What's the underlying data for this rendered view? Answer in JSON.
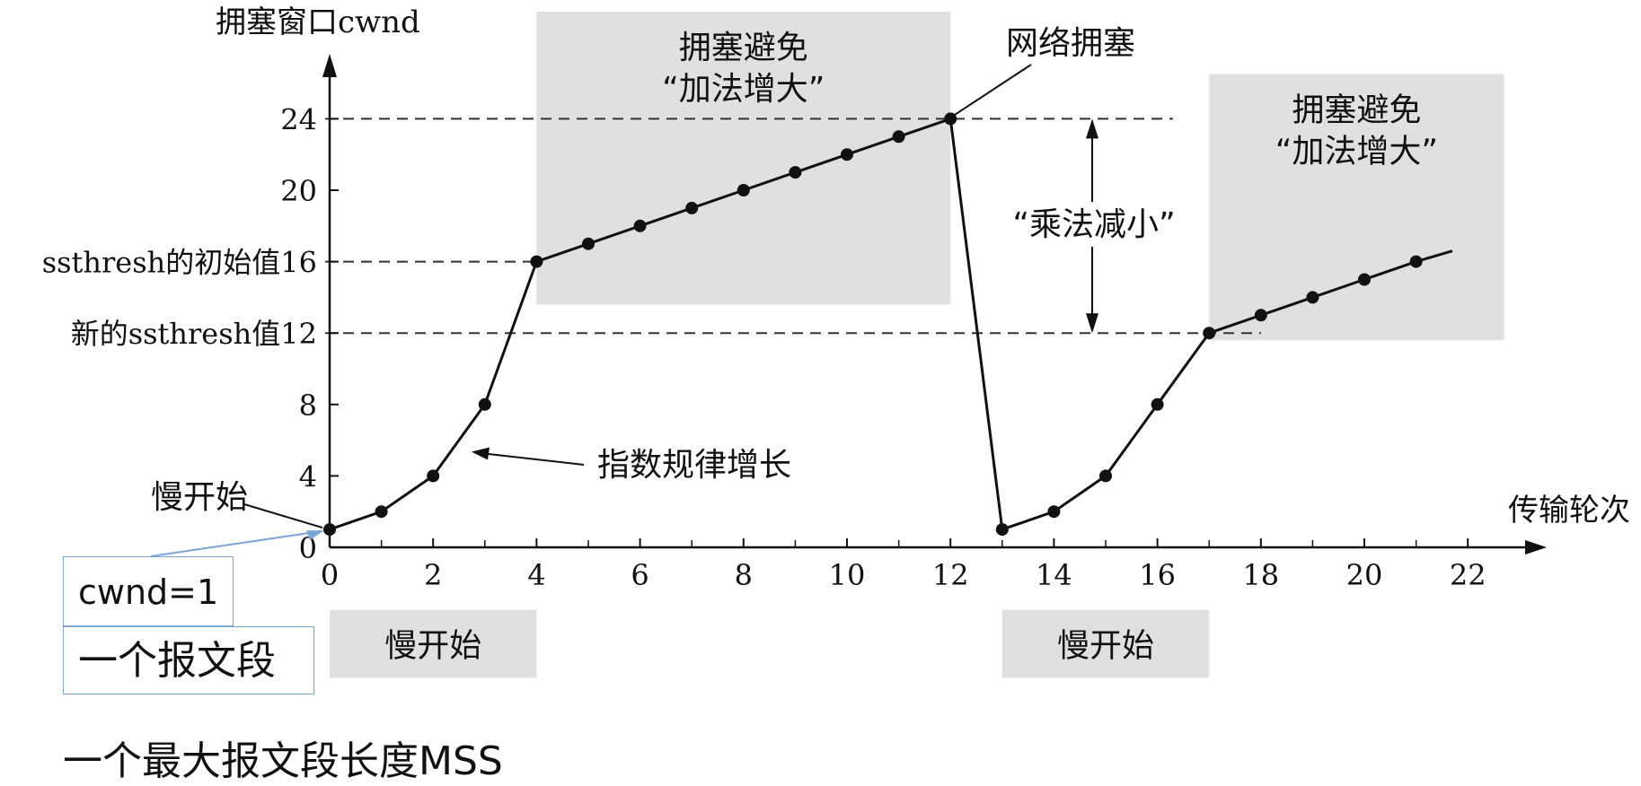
{
  "chart_data": {
    "type": "line",
    "title": "",
    "ylabel": "拥塞窗口cwnd",
    "xlabel": "传输轮次",
    "xlim": [
      0,
      23
    ],
    "ylim": [
      0,
      26
    ],
    "x_ticks": [
      0,
      2,
      4,
      6,
      8,
      10,
      12,
      14,
      16,
      18,
      20,
      22
    ],
    "y_ticks": [
      0,
      4,
      8,
      12,
      16,
      20,
      24
    ],
    "y_special_labels": [
      {
        "y": 16,
        "text": "ssthresh的初始值16"
      },
      {
        "y": 12,
        "text": "新的ssthresh值12"
      }
    ],
    "series": [
      {
        "points": [
          [
            0,
            1
          ],
          [
            1,
            2
          ],
          [
            2,
            4
          ],
          [
            3,
            8
          ],
          [
            4,
            16
          ],
          [
            5,
            17
          ],
          [
            6,
            18
          ],
          [
            7,
            19
          ],
          [
            8,
            20
          ],
          [
            9,
            21
          ],
          [
            10,
            22
          ],
          [
            11,
            23
          ],
          [
            12,
            24
          ]
        ]
      },
      {
        "points": [
          [
            13,
            1
          ],
          [
            14,
            2
          ],
          [
            15,
            4
          ],
          [
            16,
            8
          ],
          [
            17,
            12
          ],
          [
            18,
            13
          ],
          [
            19,
            14
          ],
          [
            20,
            15
          ],
          [
            21,
            16
          ]
        ],
        "extend_to": [
          21.7,
          16.6
        ]
      }
    ],
    "dashed_lines": [
      {
        "y": 24,
        "x_from": 0,
        "x_to": 16.3
      },
      {
        "y": 16,
        "x_from": 0,
        "x_to": 4
      },
      {
        "y": 12,
        "x_from": 0,
        "x_to": 18
      }
    ],
    "shaded_regions": [
      {
        "x": [
          4,
          12
        ],
        "y": [
          13.6,
          30
        ],
        "label_lines": [
          "拥塞避免",
          "“加法增大”"
        ]
      },
      {
        "x": [
          17,
          22.7
        ],
        "y": [
          11.6,
          26.5
        ],
        "label_lines": [
          "拥塞避免",
          "“加法增大”"
        ]
      },
      {
        "x": [
          0,
          4
        ],
        "y": [
          -7.3,
          -3.5
        ],
        "label_lines": [
          "慢开始"
        ]
      },
      {
        "x": [
          13,
          17
        ],
        "y": [
          -7.3,
          -3.5
        ],
        "label_lines": [
          "慢开始"
        ]
      }
    ],
    "annotations": [
      {
        "text": "网络拥塞",
        "points_to": [
          12,
          24
        ]
      },
      {
        "text": "“乘法减小”",
        "range": [
          12,
          24
        ]
      },
      {
        "text": "指数规律增长",
        "points_to": [
          2.5,
          5.5
        ]
      },
      {
        "text": "慢开始",
        "points_to": [
          0,
          1
        ]
      }
    ]
  },
  "callout": {
    "cwnd_text": "cwnd=1",
    "segment_text": "一个报文段",
    "mss_caption": "一个最大报文段长度MSS"
  },
  "colors": {
    "line": "#111111",
    "shade": "#e0e0e0",
    "callout_border": "#7aa7d8"
  }
}
